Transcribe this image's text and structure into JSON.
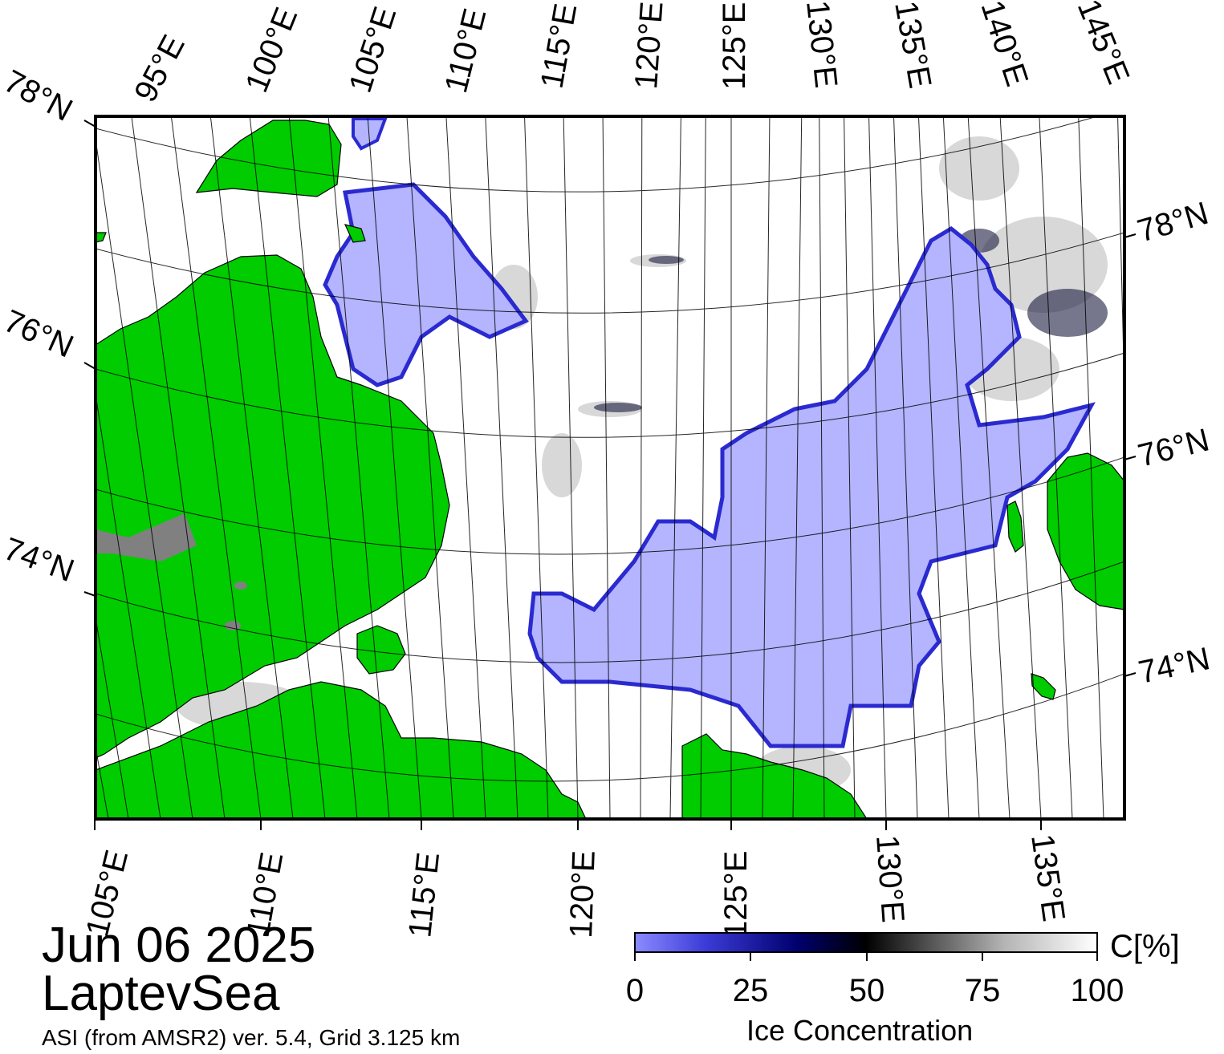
{
  "map": {
    "title_date": "Jun 06 2025",
    "region": "LaptevSea",
    "source": "ASI (from AMSR2) ver. 5.4,  Grid 3.125 km",
    "top_lon_labels": [
      "95°E",
      "100°E",
      "105°E",
      "110°E",
      "115°E",
      "120°E",
      "125°E",
      "130°E",
      "135°E",
      "140°E",
      "145°E"
    ],
    "bottom_lon_labels": [
      "105°E",
      "110°E",
      "115°E",
      "120°E",
      "125°E",
      "130°E",
      "135°E"
    ],
    "left_lat_labels": [
      "78°N",
      "76°N",
      "74°N"
    ],
    "right_lat_labels": [
      "78°N",
      "76°N",
      "74°N"
    ],
    "colors": {
      "land": "#00cc00",
      "land_ice": "#808080",
      "open_water": "#b4b4ff",
      "ocean_ice": "#ffffff",
      "frame": "#000000"
    }
  },
  "colorbar": {
    "title": "Ice Concentration",
    "unit": "C[%]",
    "ticks": [
      "0",
      "25",
      "50",
      "75",
      "100"
    ],
    "range": [
      0,
      100
    ]
  }
}
